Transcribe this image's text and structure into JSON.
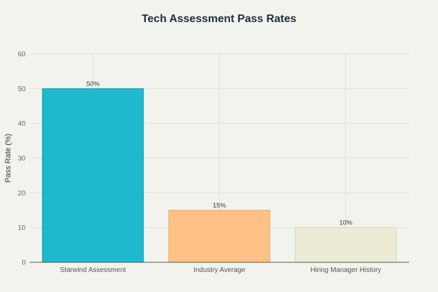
{
  "chart_data": {
    "type": "bar",
    "title": "Tech Assessment Pass Rates",
    "xlabel": "",
    "ylabel": "Pass Rate (%)",
    "categories": [
      "Starwind Assessment",
      "Industry Average",
      "Hiring Manager History"
    ],
    "values": [
      50,
      15,
      10
    ],
    "data_labels": [
      "50%",
      "15%",
      "10%"
    ],
    "colors": [
      "#1fb8cc",
      "#ffc185",
      "#ecebd5"
    ],
    "bar_outline_colors": [
      "#1aa3b6",
      "#f0ab6a",
      "#d6d4ba"
    ],
    "ylim": [
      0,
      60
    ],
    "yticks": [
      0,
      10,
      20,
      30,
      40,
      50,
      60
    ],
    "grid": true,
    "legend": "none"
  }
}
